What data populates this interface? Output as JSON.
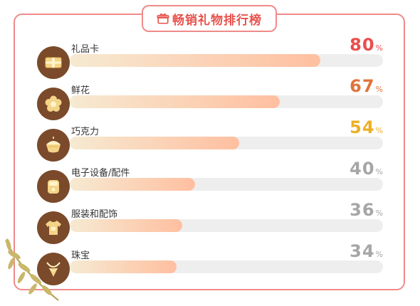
{
  "title": "畅销礼物排行榜",
  "chart_data": {
    "type": "bar",
    "orientation": "horizontal",
    "title": "畅销礼物排行榜",
    "categories": [
      "礼品卡",
      "鲜花",
      "巧克力",
      "电子设备/配件",
      "服装和配饰",
      "珠宝"
    ],
    "values": [
      80,
      67,
      54,
      40,
      36,
      34
    ],
    "unit": "%",
    "value_colors": [
      "#ec4d4d",
      "#e0743a",
      "#ecb026",
      "#a6a6a6",
      "#a6a6a6",
      "#a6a6a6"
    ],
    "icons": [
      "gift-card-icon",
      "flower-icon",
      "chocolate-icon",
      "device-icon",
      "clothing-icon",
      "jewelry-icon"
    ]
  },
  "colors": {
    "frame": "#f08a8a",
    "title": "#e8514b",
    "icon_bg": "#7a4a2a",
    "track": "#eeeeee",
    "fill_start": "#f6ead2",
    "fill_end": "#ffbfa0"
  }
}
